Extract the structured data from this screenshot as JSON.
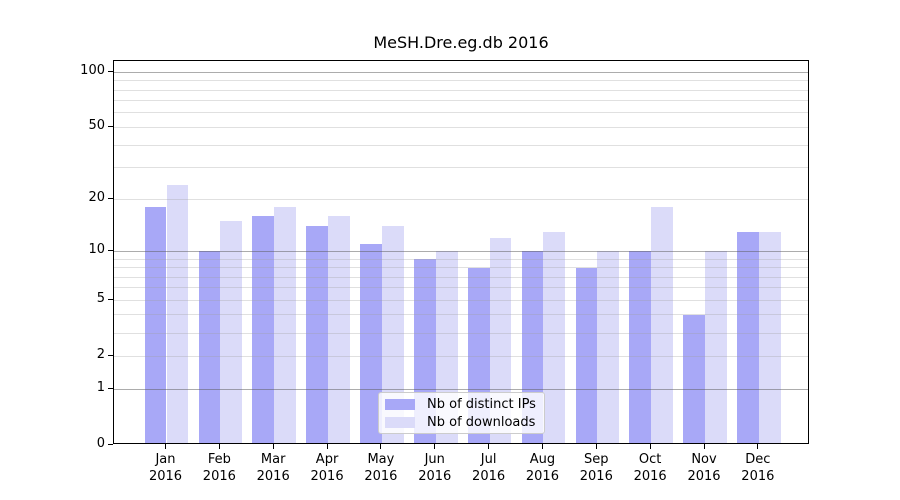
{
  "chart_data": {
    "type": "bar",
    "title": "MeSH.Dre.eg.db 2016",
    "categories": [
      "Jan 2016",
      "Feb 2016",
      "Mar 2016",
      "Apr 2016",
      "May 2016",
      "Jun 2016",
      "Jul 2016",
      "Aug 2016",
      "Sep 2016",
      "Oct 2016",
      "Nov 2016",
      "Dec 2016"
    ],
    "series": [
      {
        "name": "Nb of distinct IPs",
        "color": "#a8a8f7",
        "values": [
          18,
          10,
          16,
          14,
          11,
          9,
          8,
          10,
          8,
          10,
          4,
          13
        ]
      },
      {
        "name": "Nb of downloads",
        "color": "#dbdbf9",
        "values": [
          24,
          15,
          18,
          16,
          14,
          10,
          12,
          13,
          10,
          18,
          10,
          13
        ]
      }
    ],
    "yscale": "log1p",
    "ylim": [
      0,
      115
    ],
    "yticks": [
      0,
      1,
      2,
      5,
      10,
      20,
      50,
      100
    ],
    "grid_major": [
      1,
      10,
      100
    ],
    "grid_minor": [
      2,
      3,
      4,
      5,
      6,
      7,
      8,
      9,
      20,
      30,
      40,
      50,
      60,
      70,
      80,
      90
    ],
    "grid": "horizontal",
    "legend_position": "inside-bottom-center",
    "axis_color": "#000000",
    "background": "#ffffff"
  }
}
